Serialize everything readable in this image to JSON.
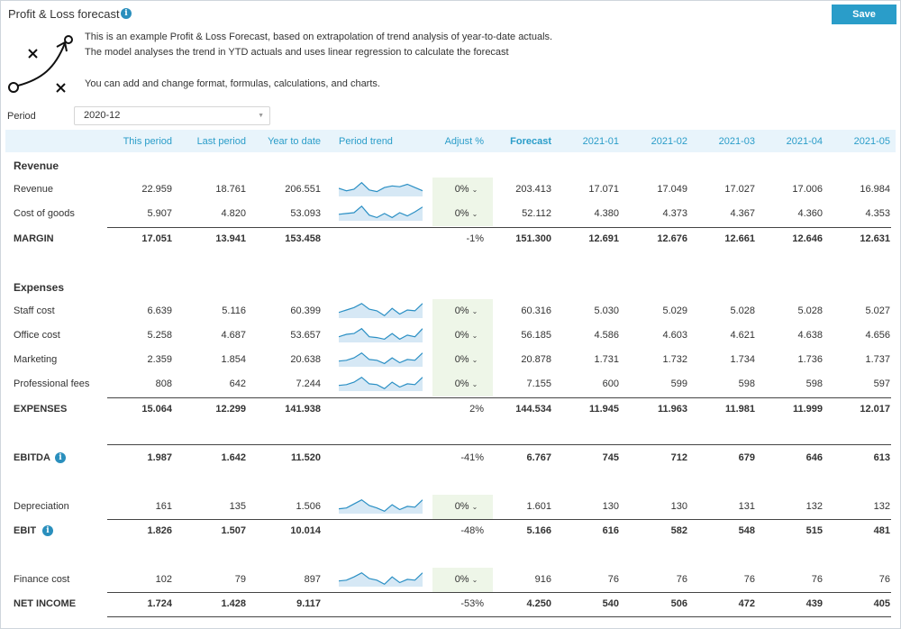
{
  "header": {
    "title": "Profit & Loss forecast",
    "save_label": "Save"
  },
  "description": {
    "line1": "This is an example Profit & Loss Forecast, based on extrapolation of trend analysis of year-to-date actuals.",
    "line2": "The model analyses the trend in YTD actuals and uses linear regression to calculate the forecast",
    "line3": "You can add and change format, formulas, calculations, and charts."
  },
  "period": {
    "label": "Period",
    "value": "2020-12"
  },
  "columns": [
    "This period",
    "Last period",
    "Year to date",
    "Period trend",
    "Adjust %",
    "Forecast",
    "2021-01",
    "2021-02",
    "2021-03",
    "2021-04",
    "2021-05"
  ],
  "sections": {
    "revenue": "Revenue",
    "expenses": "Expenses"
  },
  "rows": [
    {
      "label": "Revenue",
      "values": [
        "22.959",
        "18.761",
        "206.551",
        "0%",
        "203.413",
        "17.071",
        "17.049",
        "17.027",
        "17.006",
        "16.984"
      ],
      "spark": [
        0.5,
        0.35,
        0.45,
        0.85,
        0.4,
        0.3,
        0.55,
        0.65,
        0.6,
        0.75,
        0.55,
        0.35
      ]
    },
    {
      "label": "Cost of goods",
      "values": [
        "5.907",
        "4.820",
        "53.093",
        "0%",
        "52.112",
        "4.380",
        "4.373",
        "4.367",
        "4.360",
        "4.353"
      ],
      "spark": [
        0.4,
        0.45,
        0.5,
        0.9,
        0.35,
        0.2,
        0.45,
        0.2,
        0.5,
        0.3,
        0.55,
        0.85
      ]
    },
    {
      "label": "MARGIN",
      "values": [
        "17.051",
        "13.941",
        "153.458",
        "-1%",
        "151.300",
        "12.691",
        "12.676",
        "12.661",
        "12.646",
        "12.631"
      ]
    },
    {
      "label": "Staff cost",
      "values": [
        "6.639",
        "5.116",
        "60.399",
        "0%",
        "60.316",
        "5.030",
        "5.029",
        "5.028",
        "5.028",
        "5.027"
      ],
      "spark": [
        0.35,
        0.5,
        0.65,
        0.9,
        0.55,
        0.45,
        0.15,
        0.6,
        0.25,
        0.5,
        0.45,
        0.9
      ]
    },
    {
      "label": "Office cost",
      "values": [
        "5.258",
        "4.687",
        "53.657",
        "0%",
        "56.185",
        "4.586",
        "4.603",
        "4.621",
        "4.638",
        "4.656"
      ],
      "spark": [
        0.35,
        0.5,
        0.55,
        0.85,
        0.35,
        0.3,
        0.2,
        0.55,
        0.2,
        0.45,
        0.35,
        0.85
      ]
    },
    {
      "label": "Marketing",
      "values": [
        "2.359",
        "1.854",
        "20.638",
        "0%",
        "20.878",
        "1.731",
        "1.732",
        "1.734",
        "1.736",
        "1.737"
      ],
      "spark": [
        0.35,
        0.4,
        0.55,
        0.85,
        0.45,
        0.4,
        0.2,
        0.55,
        0.25,
        0.45,
        0.4,
        0.85
      ]
    },
    {
      "label": "Professional fees",
      "values": [
        "808",
        "642",
        "7.244",
        "0%",
        "7.155",
        "600",
        "599",
        "598",
        "598",
        "597"
      ],
      "spark": [
        0.35,
        0.4,
        0.55,
        0.85,
        0.45,
        0.4,
        0.15,
        0.55,
        0.25,
        0.45,
        0.4,
        0.85
      ]
    },
    {
      "label": "EXPENSES",
      "values": [
        "15.064",
        "12.299",
        "141.938",
        "2%",
        "144.534",
        "11.945",
        "11.963",
        "11.981",
        "11.999",
        "12.017"
      ]
    },
    {
      "label": "EBITDA",
      "values": [
        "1.987",
        "1.642",
        "11.520",
        "-41%",
        "6.767",
        "745",
        "712",
        "679",
        "646",
        "613"
      ]
    },
    {
      "label": "Depreciation",
      "values": [
        "161",
        "135",
        "1.506",
        "0%",
        "1.601",
        "130",
        "130",
        "131",
        "132",
        "132"
      ],
      "spark": [
        0.3,
        0.35,
        0.6,
        0.85,
        0.5,
        0.35,
        0.15,
        0.55,
        0.25,
        0.45,
        0.4,
        0.85
      ]
    },
    {
      "label": "EBIT",
      "values": [
        "1.826",
        "1.507",
        "10.014",
        "-48%",
        "5.166",
        "616",
        "582",
        "548",
        "515",
        "481"
      ]
    },
    {
      "label": "Finance cost",
      "values": [
        "102",
        "79",
        "897",
        "0%",
        "916",
        "76",
        "76",
        "76",
        "76",
        "76"
      ],
      "spark": [
        0.35,
        0.4,
        0.6,
        0.85,
        0.5,
        0.4,
        0.15,
        0.6,
        0.25,
        0.45,
        0.4,
        0.85
      ]
    },
    {
      "label": "NET INCOME",
      "values": [
        "1.724",
        "1.428",
        "9.117",
        "-53%",
        "4.250",
        "540",
        "506",
        "472",
        "439",
        "405"
      ]
    }
  ],
  "colors": {
    "accent": "#2a9dc9",
    "header_band": "#e8f4fb",
    "adjust_bg": "#eef6e8",
    "spark_line": "#2a8fc4",
    "spark_fill": "#d6e8f5"
  }
}
